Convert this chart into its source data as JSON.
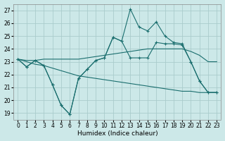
{
  "xlabel": "Humidex (Indice chaleur)",
  "background_color": "#cce8e8",
  "grid_color": "#aacccc",
  "line_color": "#1a6e6e",
  "xlim": [
    -0.5,
    23.5
  ],
  "ylim": [
    18.5,
    27.5
  ],
  "yticks": [
    19,
    20,
    21,
    22,
    23,
    24,
    25,
    26,
    27
  ],
  "xticks": [
    0,
    1,
    2,
    3,
    4,
    5,
    6,
    7,
    8,
    9,
    10,
    11,
    12,
    13,
    14,
    15,
    16,
    17,
    18,
    19,
    20,
    21,
    22,
    23
  ],
  "series": [
    {
      "markers": true,
      "x": [
        0,
        1,
        2,
        3,
        4,
        5,
        6,
        7,
        8,
        9,
        10,
        11,
        12,
        13,
        14,
        15,
        16,
        17,
        18,
        19,
        20,
        21,
        22,
        23
      ],
      "y": [
        23.2,
        22.6,
        23.1,
        22.7,
        21.2,
        19.6,
        18.9,
        21.7,
        22.4,
        23.1,
        23.3,
        24.9,
        24.6,
        27.1,
        25.7,
        25.4,
        26.1,
        25.0,
        24.5,
        24.4,
        23.0,
        21.5,
        20.6,
        20.6
      ]
    },
    {
      "markers": true,
      "x": [
        0,
        1,
        2,
        3,
        4,
        5,
        6,
        7,
        8,
        9,
        10,
        11,
        12,
        13,
        14,
        15,
        16,
        17,
        18,
        19,
        20,
        21,
        22,
        23
      ],
      "y": [
        23.2,
        22.6,
        23.1,
        22.7,
        21.2,
        19.6,
        18.9,
        21.7,
        22.4,
        23.1,
        23.3,
        24.9,
        24.6,
        23.3,
        23.3,
        23.3,
        24.5,
        24.4,
        24.4,
        24.3,
        23.0,
        21.5,
        20.6,
        20.6
      ]
    },
    {
      "markers": false,
      "x": [
        0,
        1,
        2,
        3,
        4,
        5,
        6,
        7,
        8,
        9,
        10,
        11,
        12,
        13,
        14,
        15,
        16,
        17,
        18,
        19,
        20,
        21,
        22,
        23
      ],
      "y": [
        23.2,
        23.1,
        23.1,
        23.2,
        23.2,
        23.2,
        23.2,
        23.2,
        23.3,
        23.4,
        23.5,
        23.6,
        23.7,
        23.8,
        23.9,
        24.0,
        24.0,
        24.0,
        24.0,
        24.0,
        23.8,
        23.5,
        23.0,
        23.0
      ]
    },
    {
      "markers": false,
      "x": [
        0,
        1,
        2,
        3,
        4,
        5,
        6,
        7,
        8,
        9,
        10,
        11,
        12,
        13,
        14,
        15,
        16,
        17,
        18,
        19,
        20,
        21,
        22,
        23
      ],
      "y": [
        23.2,
        23.0,
        22.8,
        22.7,
        22.5,
        22.3,
        22.1,
        21.9,
        21.8,
        21.7,
        21.6,
        21.5,
        21.4,
        21.3,
        21.2,
        21.1,
        21.0,
        20.9,
        20.8,
        20.7,
        20.7,
        20.6,
        20.6,
        20.6
      ]
    }
  ]
}
